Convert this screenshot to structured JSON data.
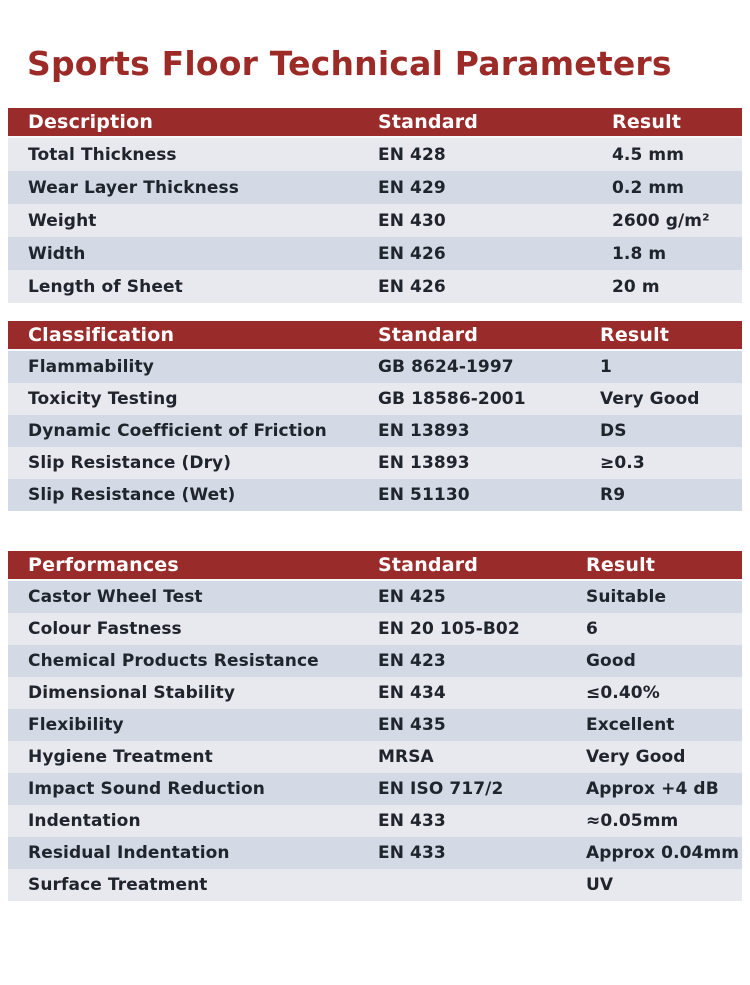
{
  "page": {
    "title": "Sports Floor Technical Parameters"
  },
  "colors": {
    "accent": "#9c2b28",
    "table_header_bg": "#992b2a",
    "row_light": "#e8e9ee",
    "row_dark": "#d3dae5",
    "cell_text": "#20242c",
    "header_text": "#ffffff",
    "page_bg": "#ffffff"
  },
  "tables": [
    {
      "id": "description",
      "headers": [
        "Description",
        "Standard",
        "Result"
      ],
      "rows": [
        [
          "Total Thickness",
          "EN 428",
          "4.5 mm"
        ],
        [
          "Wear Layer Thickness",
          "EN 429",
          "0.2 mm"
        ],
        [
          "Weight",
          "EN 430",
          "2600 g/m²"
        ],
        [
          "Width",
          "EN 426",
          "1.8 m"
        ],
        [
          "Length of Sheet",
          "EN 426",
          "20 m"
        ]
      ]
    },
    {
      "id": "classification",
      "headers": [
        "Classification",
        "Standard",
        "Result"
      ],
      "rows": [
        [
          "Flammability",
          "GB 8624-1997",
          "1"
        ],
        [
          "Toxicity Testing",
          "GB 18586-2001",
          "Very Good"
        ],
        [
          "Dynamic Coefficient of Friction",
          "EN 13893",
          "DS"
        ],
        [
          "Slip Resistance (Dry)",
          "EN 13893",
          "≥0.3"
        ],
        [
          "Slip Resistance (Wet)",
          "EN 51130",
          "R9"
        ]
      ]
    },
    {
      "id": "performances",
      "headers": [
        "Performances",
        "Standard",
        "Result"
      ],
      "rows": [
        [
          "Castor Wheel Test",
          "EN 425",
          "Suitable"
        ],
        [
          "Colour Fastness",
          "EN 20 105-B02",
          "6"
        ],
        [
          "Chemical Products Resistance",
          "EN 423",
          "Good"
        ],
        [
          "Dimensional Stability",
          "EN 434",
          "≤0.40%"
        ],
        [
          "Flexibility",
          "EN 435",
          "Excellent"
        ],
        [
          "Hygiene Treatment",
          "MRSA",
          "Very Good"
        ],
        [
          "Impact Sound Reduction",
          "EN ISO 717/2",
          "Approx +4 dB"
        ],
        [
          "Indentation",
          "EN 433",
          "≈0.05mm"
        ],
        [
          "Residual Indentation",
          "EN 433",
          "Approx 0.04mm"
        ],
        [
          "Surface Treatment",
          "",
          "UV"
        ]
      ]
    }
  ]
}
